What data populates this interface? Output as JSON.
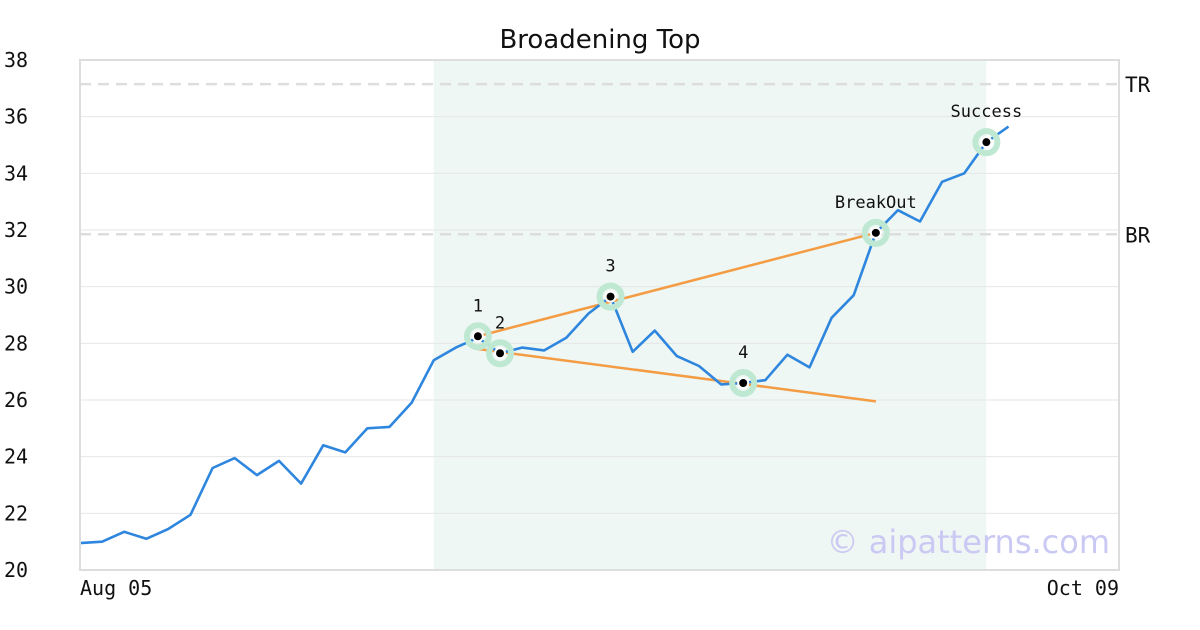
{
  "chart_data": {
    "type": "line",
    "title": "Broadening Top",
    "xlabel": "",
    "ylabel": "",
    "ylim": [
      20,
      38
    ],
    "yticks": [
      "20",
      "22",
      "24",
      "26",
      "28",
      "30",
      "32",
      "34",
      "36",
      "38"
    ],
    "xtick_labels": [
      "Aug 05",
      "Oct 09"
    ],
    "grid": "horizontal",
    "watermark": "© aipatterns.com",
    "series": [
      {
        "color": "#2e86de",
        "x": [
          0,
          1,
          2,
          3,
          4,
          5,
          6,
          7,
          8,
          9,
          10,
          11,
          12,
          13,
          14,
          15,
          16,
          17,
          18,
          19,
          20,
          21,
          22,
          23,
          24,
          25,
          26,
          27,
          28,
          29,
          30,
          31,
          32,
          33,
          34,
          35,
          36,
          37,
          38,
          39,
          40,
          41,
          42,
          43
        ],
        "values": [
          20.95,
          21.0,
          21.35,
          21.1,
          21.45,
          21.95,
          23.6,
          23.95,
          23.35,
          23.85,
          23.05,
          24.4,
          24.15,
          25.0,
          25.05,
          25.9,
          27.4,
          27.85,
          28.2,
          27.65,
          27.85,
          27.75,
          28.2,
          29.05,
          29.65,
          27.7,
          28.45,
          27.55,
          27.2,
          26.55,
          26.6,
          26.7,
          27.6,
          27.15,
          28.9,
          29.7,
          31.9,
          32.7,
          32.3,
          33.7,
          34.0,
          35.1,
          35.65,
          null
        ]
      }
    ],
    "highlight_region": {
      "x_start": 16,
      "x_end": 41,
      "color": "#eef7f3"
    },
    "levels": [
      {
        "label": "TR",
        "y": 37.15
      },
      {
        "label": "BR",
        "y": 31.85
      }
    ],
    "trend_lines": [
      {
        "color": "#f39c44",
        "from": {
          "x": 18,
          "y": 28.25
        },
        "to": {
          "x": 36,
          "y": 31.9
        }
      },
      {
        "color": "#f39c44",
        "from": {
          "x": 18,
          "y": 27.8
        },
        "to": {
          "x": 36,
          "y": 25.95
        }
      }
    ],
    "points": [
      {
        "label": "1",
        "x": 18,
        "y": 28.25
      },
      {
        "label": "2",
        "x": 19,
        "y": 27.65
      },
      {
        "label": "3",
        "x": 24,
        "y": 29.65
      },
      {
        "label": "4",
        "x": 30,
        "y": 26.6
      },
      {
        "label": "BreakOut",
        "x": 36,
        "y": 31.9
      },
      {
        "label": "Success",
        "x": 41,
        "y": 35.1
      }
    ],
    "x_domain": [
      0,
      47
    ]
  }
}
